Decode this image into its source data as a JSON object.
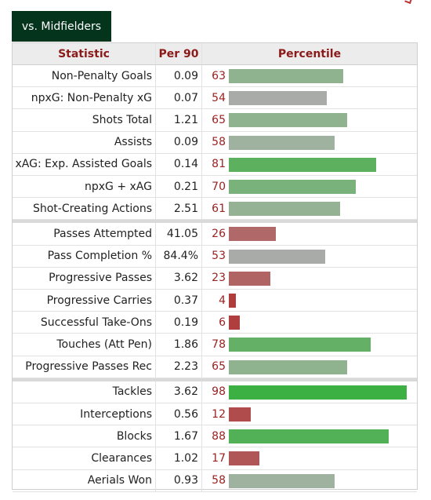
{
  "tab_label": "vs. Midfielders",
  "headers": {
    "statistic": "Statistic",
    "per90": "Per 90",
    "percentile": "Percentile"
  },
  "colors": {
    "dark_green": "#04341c",
    "strong_green": "#3cb043",
    "green": "#63b066",
    "pale_green": "#8fb38f",
    "gray": "#a9aba9",
    "red": "#b06868",
    "dark_red": "#b04040"
  },
  "groups": [
    [
      {
        "stat": "Non-Penalty Goals",
        "per90": "0.09",
        "pct": "63",
        "value": 63,
        "color": "#8fb38f"
      },
      {
        "stat": "npxG: Non-Penalty xG",
        "per90": "0.07",
        "pct": "54",
        "value": 54,
        "color": "#a9aba9"
      },
      {
        "stat": "Shots Total",
        "per90": "1.21",
        "pct": "65",
        "value": 65,
        "color": "#8fb38f"
      },
      {
        "stat": "Assists",
        "per90": "0.09",
        "pct": "58",
        "value": 58,
        "color": "#9fb19f"
      },
      {
        "stat": "xAG: Exp. Assisted Goals",
        "per90": "0.14",
        "pct": "81",
        "value": 81,
        "color": "#5cb05e"
      },
      {
        "stat": "npxG + xAG",
        "per90": "0.21",
        "pct": "70",
        "value": 70,
        "color": "#7ab27b"
      },
      {
        "stat": "Shot-Creating Actions",
        "per90": "2.51",
        "pct": "61",
        "value": 61,
        "color": "#95b295"
      }
    ],
    [
      {
        "stat": "Passes Attempted",
        "per90": "41.05",
        "pct": "26",
        "value": 26,
        "color": "#b06868"
      },
      {
        "stat": "Pass Completion %",
        "per90": "84.4%",
        "pct": "53",
        "value": 53,
        "color": "#a9aba9"
      },
      {
        "stat": "Progressive Passes",
        "per90": "3.62",
        "pct": "23",
        "value": 23,
        "color": "#b06464"
      },
      {
        "stat": "Progressive Carries",
        "per90": "0.37",
        "pct": "4",
        "value": 4,
        "color": "#b03c3c"
      },
      {
        "stat": "Successful Take-Ons",
        "per90": "0.19",
        "pct": "6",
        "value": 6,
        "color": "#b03e3e"
      },
      {
        "stat": "Touches (Att Pen)",
        "per90": "1.86",
        "pct": "78",
        "value": 78,
        "color": "#63b066"
      },
      {
        "stat": "Progressive Passes Rec",
        "per90": "2.23",
        "pct": "65",
        "value": 65,
        "color": "#8fb38f"
      }
    ],
    [
      {
        "stat": "Tackles",
        "per90": "3.62",
        "pct": "98",
        "value": 98,
        "color": "#3cb043"
      },
      {
        "stat": "Interceptions",
        "per90": "0.56",
        "pct": "12",
        "value": 12,
        "color": "#b04c4c"
      },
      {
        "stat": "Blocks",
        "per90": "1.67",
        "pct": "88",
        "value": 88,
        "color": "#52b056"
      },
      {
        "stat": "Clearances",
        "per90": "1.02",
        "pct": "17",
        "value": 17,
        "color": "#b05656"
      },
      {
        "stat": "Aerials Won",
        "per90": "0.93",
        "pct": "58",
        "value": 58,
        "color": "#9fb19f"
      }
    ]
  ]
}
